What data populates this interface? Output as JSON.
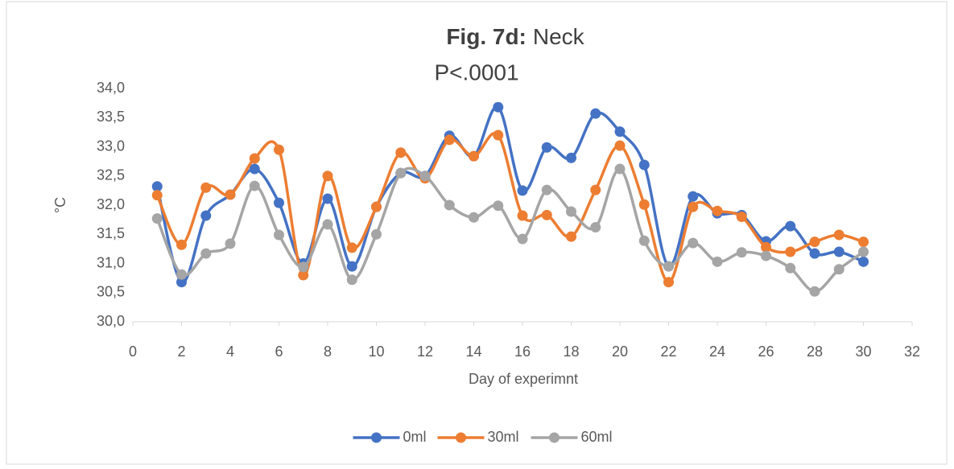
{
  "chart_data": {
    "type": "line",
    "title": {
      "bold": "Fig. 7d:",
      "rest": "Neck"
    },
    "subtitle": "P<.0001",
    "x_label": "Day of experimnt",
    "y_label": "°C",
    "x": [
      1,
      2,
      3,
      4,
      5,
      6,
      7,
      8,
      9,
      10,
      11,
      12,
      13,
      14,
      15,
      16,
      17,
      18,
      19,
      20,
      21,
      22,
      23,
      24,
      25,
      26,
      27,
      28,
      29,
      30
    ],
    "xlim": [
      0,
      32
    ],
    "xticks": [
      0,
      2,
      4,
      6,
      8,
      10,
      12,
      14,
      16,
      18,
      20,
      22,
      24,
      26,
      28,
      30,
      32
    ],
    "ylim": [
      30,
      34
    ],
    "yticks": [
      {
        "value": 30,
        "label": "30,0"
      },
      {
        "value": 30.5,
        "label": "30,5"
      },
      {
        "value": 31,
        "label": "31,0"
      },
      {
        "value": 31.5,
        "label": "31,5"
      },
      {
        "value": 32,
        "label": "32,0"
      },
      {
        "value": 32.5,
        "label": "32,5"
      },
      {
        "value": 33,
        "label": "33,0"
      },
      {
        "value": 33.5,
        "label": "33,5"
      },
      {
        "value": 34,
        "label": "34,0"
      }
    ],
    "grid": false,
    "smooth": true,
    "legend": "bottom",
    "series": [
      {
        "name": "0ml",
        "color": "#4472c4",
        "values": [
          32.32,
          30.68,
          31.82,
          32.18,
          32.62,
          32.04,
          31.0,
          32.11,
          30.95,
          31.97,
          32.55,
          32.5,
          33.19,
          32.84,
          33.68,
          32.25,
          32.99,
          32.81,
          33.57,
          33.26,
          32.69,
          30.95,
          32.15,
          31.86,
          31.83,
          31.38,
          31.64,
          31.17,
          31.2,
          31.03
        ]
      },
      {
        "name": "30ml",
        "color": "#ed7d31",
        "values": [
          32.17,
          31.32,
          32.3,
          32.18,
          32.8,
          32.95,
          30.8,
          32.5,
          31.27,
          31.97,
          32.9,
          32.46,
          33.12,
          32.84,
          33.2,
          31.82,
          31.83,
          31.46,
          32.26,
          33.02,
          32.01,
          30.68,
          31.97,
          31.9,
          31.8,
          31.28,
          31.2,
          31.37,
          31.49,
          31.37
        ]
      },
      {
        "name": "60ml",
        "color": "#a5a5a5",
        "values": [
          31.77,
          30.81,
          31.17,
          31.34,
          32.33,
          31.49,
          30.94,
          31.67,
          30.72,
          31.5,
          32.55,
          32.5,
          32.0,
          31.79,
          31.99,
          31.42,
          32.26,
          31.89,
          31.62,
          32.62,
          31.39,
          30.95,
          31.35,
          31.03,
          31.19,
          31.13,
          30.92,
          30.52,
          30.9,
          31.2
        ]
      }
    ]
  }
}
